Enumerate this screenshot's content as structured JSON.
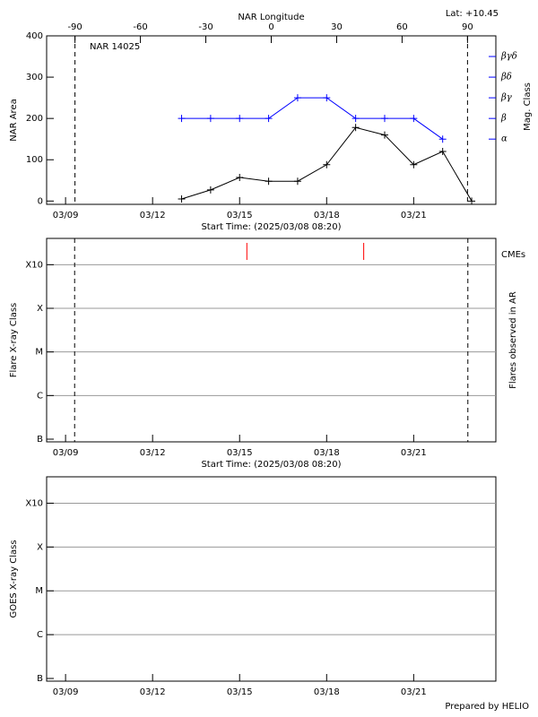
{
  "chart_data": [
    {
      "type": "line",
      "title": "NAR 14025",
      "annotation": "Lat: +10.45",
      "x_label": "Start Time: (2025/03/08 08:20)",
      "y_label": "NAR Area",
      "y2_label": "Mag. Class",
      "x2_label": "NAR Longitude",
      "xlim": [
        "03/08 08:20",
        "03/23 20:00"
      ],
      "xticks": [
        "03/09",
        "03/12",
        "03/15",
        "03/18",
        "03/21"
      ],
      "ylim": [
        -8,
        400
      ],
      "yticks": [
        0,
        100,
        200,
        300,
        400
      ],
      "y2lim": [
        -2.16,
        6
      ],
      "y2ticks": [
        {
          "value": 1,
          "label": "α"
        },
        {
          "value": 2,
          "label": "β"
        },
        {
          "value": 3,
          "label": "βγ"
        },
        {
          "value": 4,
          "label": "βδ"
        },
        {
          "value": 5,
          "label": "βγδ"
        }
      ],
      "x2lim": [
        -103,
        103
      ],
      "x2ticks": [
        -90,
        -60,
        -30,
        0,
        30,
        60,
        90
      ],
      "limb_longitudes": [
        -90,
        90
      ],
      "series": [
        {
          "color": "#000000",
          "x": [
            "03/13",
            "03/14",
            "03/15",
            "03/16",
            "03/17",
            "03/18",
            "03/19",
            "03/20",
            "03/21",
            "03/22",
            "03/23"
          ],
          "values": [
            5,
            27,
            57,
            48,
            48,
            88,
            178,
            160,
            88,
            120,
            0
          ]
        },
        {
          "color": "#0000ff",
          "axis": "y2",
          "x": [
            "03/13",
            "03/14",
            "03/15",
            "03/16",
            "03/17",
            "03/18",
            "03/19",
            "03/20",
            "03/21",
            "03/22"
          ],
          "values": [
            2,
            2,
            2,
            2,
            3,
            3,
            2,
            2,
            2,
            1
          ]
        }
      ]
    },
    {
      "type": "timeline",
      "x_label": "Start Time: (2025/03/08 08:20)",
      "y_label": "Flare X-ray Class",
      "y2_label": "Flares observed in AR",
      "xlim": [
        "03/08 08:20",
        "03/23 20:00"
      ],
      "xticks": [
        "03/09",
        "03/12",
        "03/15",
        "03/18",
        "03/21"
      ],
      "yticks": [
        "B",
        "C",
        "M",
        "X",
        "X10"
      ],
      "grid": true,
      "limb_times": [
        "03/09 07:30",
        "03/22 20:50"
      ],
      "cmes": {
        "label": "CMEs",
        "color": "#ff0000",
        "x": [
          "03/15 06:00",
          "03/19 06:40"
        ]
      }
    },
    {
      "type": "timeline",
      "y_label": "GOES X-ray Class",
      "xlim": [
        "03/08 08:20",
        "03/23 20:00"
      ],
      "xticks": [
        "03/09",
        "03/12",
        "03/15",
        "03/18",
        "03/21"
      ],
      "yticks": [
        "B",
        "C",
        "M",
        "X",
        "X10"
      ],
      "grid": true,
      "footer": "Prepared by HELIO"
    }
  ]
}
